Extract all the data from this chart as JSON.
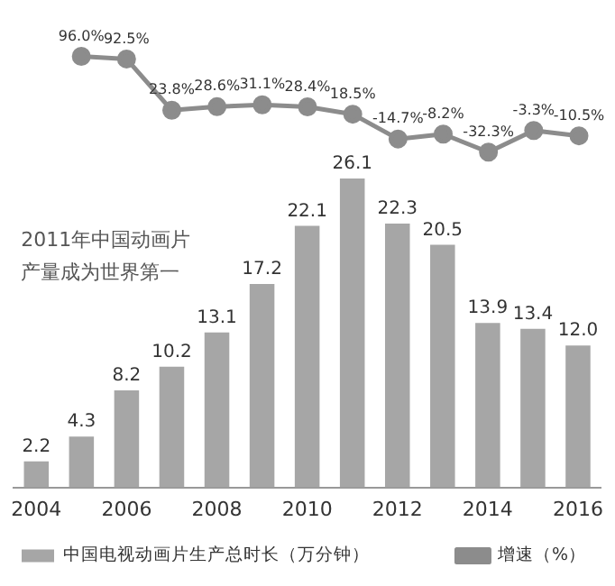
{
  "chart_data": [
    {
      "type": "line",
      "categories": [
        "2004",
        null,
        "2006",
        null,
        "2008",
        null,
        "2010",
        null,
        "2012",
        null,
        "2014",
        null,
        "2016"
      ],
      "series": [
        {
          "name": "增速（%）",
          "color": "#8c8c8c",
          "values": [
            null,
            96.0,
            92.5,
            23.8,
            28.6,
            31.1,
            28.4,
            18.5,
            -14.7,
            -8.2,
            -32.3,
            -3.3,
            -10.5
          ],
          "value_labels": [
            null,
            "96.0%",
            "92.5%",
            "23.8%",
            "28.6%",
            "31.1%",
            "28.4%",
            "18.5%",
            "-14.7%",
            "-8.2%",
            "-32.3%",
            "-3.3%",
            "-10.5%"
          ]
        }
      ],
      "marker": "circle",
      "grid": false,
      "legend": "bottom right",
      "tick_labels": false
    },
    {
      "type": "bar",
      "categories": [
        "2004",
        null,
        "2006",
        null,
        "2008",
        null,
        "2010",
        null,
        "2012",
        null,
        "2014",
        null,
        "2016"
      ],
      "series": [
        {
          "name": "中国电视动画片生产总时长（万分钟）",
          "color": "#a6a6a6",
          "values": [
            2.2,
            4.3,
            8.2,
            10.2,
            13.1,
            17.2,
            22.1,
            26.1,
            22.3,
            20.5,
            13.9,
            13.4,
            12.0
          ],
          "value_labels": [
            "2.2",
            "4.3",
            "8.2",
            "10.2",
            "13.1",
            "17.2",
            "22.1",
            "26.1",
            "22.3",
            "20.5",
            "13.9",
            "13.4",
            "12.0"
          ]
        }
      ],
      "grid": false,
      "legend": "bottom left",
      "tick_labels": "x",
      "annotations": [
        "2011年中国动画片",
        "产量成为世界第一"
      ]
    }
  ]
}
